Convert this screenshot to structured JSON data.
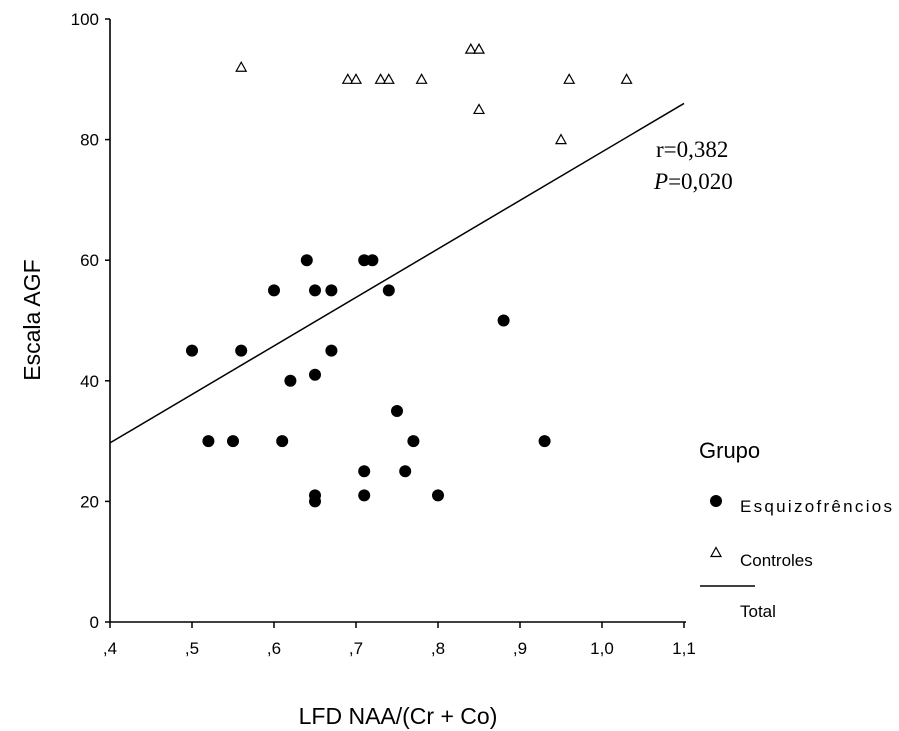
{
  "chart_data": {
    "type": "scatter",
    "xlabel": "LFD NAA/(Cr + Co)",
    "ylabel": "Escala AGF",
    "xlim": [
      0.4,
      1.1
    ],
    "ylim": [
      0,
      100
    ],
    "x_ticks": [
      {
        "value": 0.4,
        "label": ",4"
      },
      {
        "value": 0.5,
        "label": ",5"
      },
      {
        "value": 0.6,
        "label": ",6"
      },
      {
        "value": 0.7,
        "label": ",7"
      },
      {
        "value": 0.8,
        "label": ",8"
      },
      {
        "value": 0.9,
        "label": ",9"
      },
      {
        "value": 1.0,
        "label": "1,0"
      },
      {
        "value": 1.1,
        "label": "1,1"
      }
    ],
    "y_ticks": [
      {
        "value": 0,
        "label": "0"
      },
      {
        "value": 20,
        "label": "20"
      },
      {
        "value": 40,
        "label": "40"
      },
      {
        "value": 60,
        "label": "60"
      },
      {
        "value": 80,
        "label": "80"
      },
      {
        "value": 100,
        "label": "100"
      }
    ],
    "grid": false,
    "legend": {
      "title": "Grupo",
      "position": "right",
      "entries": [
        {
          "label": "Esquizofrêncios",
          "marker": "filled-circle"
        },
        {
          "label": "Controles",
          "marker": "open-triangle"
        },
        {
          "label": "Total",
          "marker": "line"
        }
      ]
    },
    "annotations": {
      "r": "r=0,382",
      "p_italic": "P",
      "p_value": "=0,020"
    },
    "series": [
      {
        "name": "Esquizofrêncios",
        "marker": "filled-circle",
        "points": [
          [
            0.5,
            45
          ],
          [
            0.52,
            30
          ],
          [
            0.55,
            30
          ],
          [
            0.56,
            45
          ],
          [
            0.6,
            55
          ],
          [
            0.61,
            30
          ],
          [
            0.62,
            40
          ],
          [
            0.64,
            60
          ],
          [
            0.65,
            55
          ],
          [
            0.65,
            41
          ],
          [
            0.65,
            21
          ],
          [
            0.65,
            20
          ],
          [
            0.67,
            55
          ],
          [
            0.67,
            45
          ],
          [
            0.71,
            60
          ],
          [
            0.72,
            60
          ],
          [
            0.71,
            25
          ],
          [
            0.71,
            21
          ],
          [
            0.74,
            55
          ],
          [
            0.75,
            35
          ],
          [
            0.76,
            25
          ],
          [
            0.77,
            30
          ],
          [
            0.8,
            21
          ],
          [
            0.88,
            50
          ],
          [
            0.93,
            30
          ]
        ]
      },
      {
        "name": "Controles",
        "marker": "open-triangle",
        "points": [
          [
            0.56,
            92
          ],
          [
            0.69,
            90
          ],
          [
            0.7,
            90
          ],
          [
            0.73,
            90
          ],
          [
            0.74,
            90
          ],
          [
            0.78,
            90
          ],
          [
            0.84,
            95
          ],
          [
            0.85,
            95
          ],
          [
            0.85,
            85
          ],
          [
            0.95,
            80
          ],
          [
            0.96,
            90
          ],
          [
            1.03,
            90
          ]
        ]
      },
      {
        "name": "Total",
        "type": "line",
        "points": [
          [
            0.4,
            29.7
          ],
          [
            1.1,
            86.0
          ]
        ]
      }
    ]
  }
}
